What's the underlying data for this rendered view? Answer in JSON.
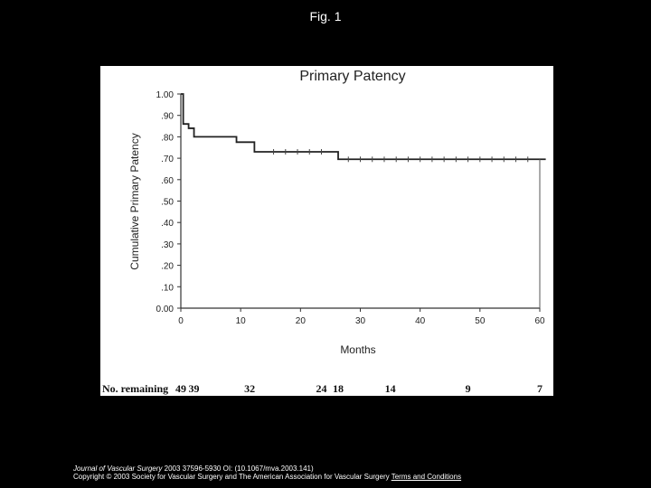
{
  "figure_label": "Fig. 1",
  "chart_data": {
    "type": "line",
    "title": "Primary Patency",
    "xlabel": "Months",
    "ylabel": "Cumulative Primary Patency",
    "xlim": [
      0,
      60
    ],
    "ylim": [
      0,
      1
    ],
    "x_ticks": [
      "0",
      "10",
      "20",
      "30",
      "40",
      "50",
      "60"
    ],
    "y_ticks": [
      "0.00",
      ".10",
      ".20",
      ".30",
      ".40",
      ".50",
      ".60",
      ".70",
      ".80",
      ".90",
      "1.00"
    ],
    "grid": false,
    "series": [
      {
        "step": true,
        "x": [
          0,
          0.4,
          1.3,
          2.2,
          9.3,
          12.3,
          26.3,
          61
        ],
        "y": [
          1.0,
          0.86,
          0.84,
          0.8,
          0.775,
          0.73,
          0.695,
          0.695
        ]
      }
    ],
    "censored": [
      {
        "x": 15.5,
        "y": 0.73
      },
      {
        "x": 17.5,
        "y": 0.73
      },
      {
        "x": 19.5,
        "y": 0.73
      },
      {
        "x": 21.5,
        "y": 0.73
      },
      {
        "x": 23.5,
        "y": 0.73
      },
      {
        "x": 28,
        "y": 0.695
      },
      {
        "x": 30,
        "y": 0.695
      },
      {
        "x": 32,
        "y": 0.695
      },
      {
        "x": 34,
        "y": 0.695
      },
      {
        "x": 36,
        "y": 0.695
      },
      {
        "x": 38,
        "y": 0.695
      },
      {
        "x": 40,
        "y": 0.695
      },
      {
        "x": 42,
        "y": 0.695
      },
      {
        "x": 44,
        "y": 0.695
      },
      {
        "x": 46,
        "y": 0.695
      },
      {
        "x": 48,
        "y": 0.695
      },
      {
        "x": 50,
        "y": 0.695
      },
      {
        "x": 52,
        "y": 0.695
      },
      {
        "x": 54,
        "y": 0.695
      },
      {
        "x": 56,
        "y": 0.695
      },
      {
        "x": 58,
        "y": 0.695
      }
    ],
    "at_risk": {
      "label": "No. remaining",
      "items": [
        {
          "x": 0,
          "value": "49"
        },
        {
          "x": 2.2,
          "value": "39"
        },
        {
          "x": 11.5,
          "value": "32"
        },
        {
          "x": 23.5,
          "value": "24"
        },
        {
          "x": 26.3,
          "value": "18"
        },
        {
          "x": 35,
          "value": "14"
        },
        {
          "x": 48,
          "value": "9"
        },
        {
          "x": 60,
          "value": "7"
        }
      ]
    }
  },
  "caption": {
    "journal": "Journal of Vascular Surgery",
    "citation": " 2003 37596-5930 OI: (10.1067/mva.2003.141)",
    "copyright": "Copyright © 2003 Society for Vascular Surgery and The American Association for Vascular Surgery ",
    "link": "Terms and Conditions"
  }
}
